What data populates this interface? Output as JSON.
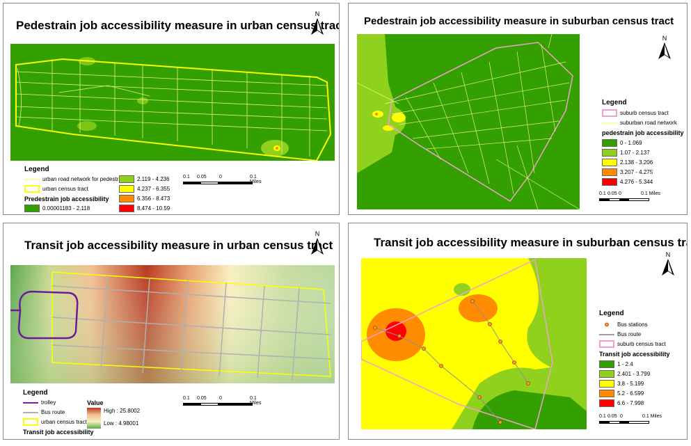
{
  "panels": {
    "p1": {
      "title": "Pedestrain job accessibility measure in urban census tract",
      "legend_title": "Legend",
      "north": "N",
      "items": [
        {
          "label": "urban road network for pedestrain",
          "type": "line",
          "color": "#ffff99"
        },
        {
          "label": "urban census tract",
          "type": "outline",
          "color": "#ffff00"
        }
      ],
      "class_title": "Predestrain job accessibility",
      "classes": [
        {
          "label": "0.00001183 - 2.118",
          "color": "#33a000"
        },
        {
          "label": "2.119 - 4.236",
          "color": "#8fd11c"
        },
        {
          "label": "4.237 - 6.355",
          "color": "#ffff00"
        },
        {
          "label": "6.356 - 8.473",
          "color": "#ff8c00"
        },
        {
          "label": "8.474 - 10.59",
          "color": "#ff0000"
        }
      ],
      "scale": {
        "labels": [
          "0.1",
          "0.05",
          "0",
          "0.1 Miles"
        ]
      }
    },
    "p2": {
      "title": "Pedestrain job accessibility measure in suburban census tract",
      "legend_title": "Legend",
      "north": "N",
      "items": [
        {
          "label": "suburb census tract",
          "type": "outline",
          "color": "#f0a0d0"
        },
        {
          "label": "suburban road network",
          "type": "line",
          "color": "#ffff99"
        }
      ],
      "class_title": "pedestrain job accessibility",
      "classes": [
        {
          "label": "0 - 1.069",
          "color": "#33a000"
        },
        {
          "label": "1.07 - 2.137",
          "color": "#8fd11c"
        },
        {
          "label": "2.138 - 3.206",
          "color": "#ffff00"
        },
        {
          "label": "3.207 - 4.275",
          "color": "#ff8c00"
        },
        {
          "label": "4.276 - 5.344",
          "color": "#ff0000"
        }
      ],
      "scale": {
        "labels": [
          "0.1",
          "0.05",
          "0",
          "0.1 Miles"
        ]
      }
    },
    "p3": {
      "title": "Transit job accessibility measure in urban census tract",
      "legend_title": "Legend",
      "north": "N",
      "items": [
        {
          "label": "trolley",
          "type": "line",
          "color": "#7a1fa0"
        },
        {
          "label": "Bus route",
          "type": "line",
          "color": "#b0b0b0"
        },
        {
          "label": "urban census tract",
          "type": "outline",
          "color": "#ffff00"
        }
      ],
      "class_title": "Transit job accessibility",
      "value_title": "Value",
      "value_high": "High : 25.8002",
      "value_low": "Low : 4.98001",
      "scale": {
        "labels": [
          "0.1",
          "0.05",
          "0",
          "0.1 Miles"
        ]
      }
    },
    "p4": {
      "title": "Transit job accessibility measure in suburban census tract",
      "legend_title": "Legend",
      "north": "N",
      "items": [
        {
          "label": "Bus stations",
          "type": "point",
          "color": "#ff9933"
        },
        {
          "label": "Bus route",
          "type": "line",
          "color": "#a0a0a0"
        },
        {
          "label": "suburb census tract",
          "type": "outline",
          "color": "#f0a0d0"
        }
      ],
      "class_title": "Transit job accessibility",
      "classes": [
        {
          "label": "1 - 2.4",
          "color": "#33a000"
        },
        {
          "label": "2.401 - 3.799",
          "color": "#8fd11c"
        },
        {
          "label": "3.8 - 5.199",
          "color": "#ffff00"
        },
        {
          "label": "5.2 - 6.599",
          "color": "#ff8c00"
        },
        {
          "label": "6.6 - 7.998",
          "color": "#ff0000"
        }
      ],
      "scale": {
        "labels": [
          "0.1",
          "0.05",
          "0",
          "0.1 Miles"
        ]
      }
    }
  }
}
